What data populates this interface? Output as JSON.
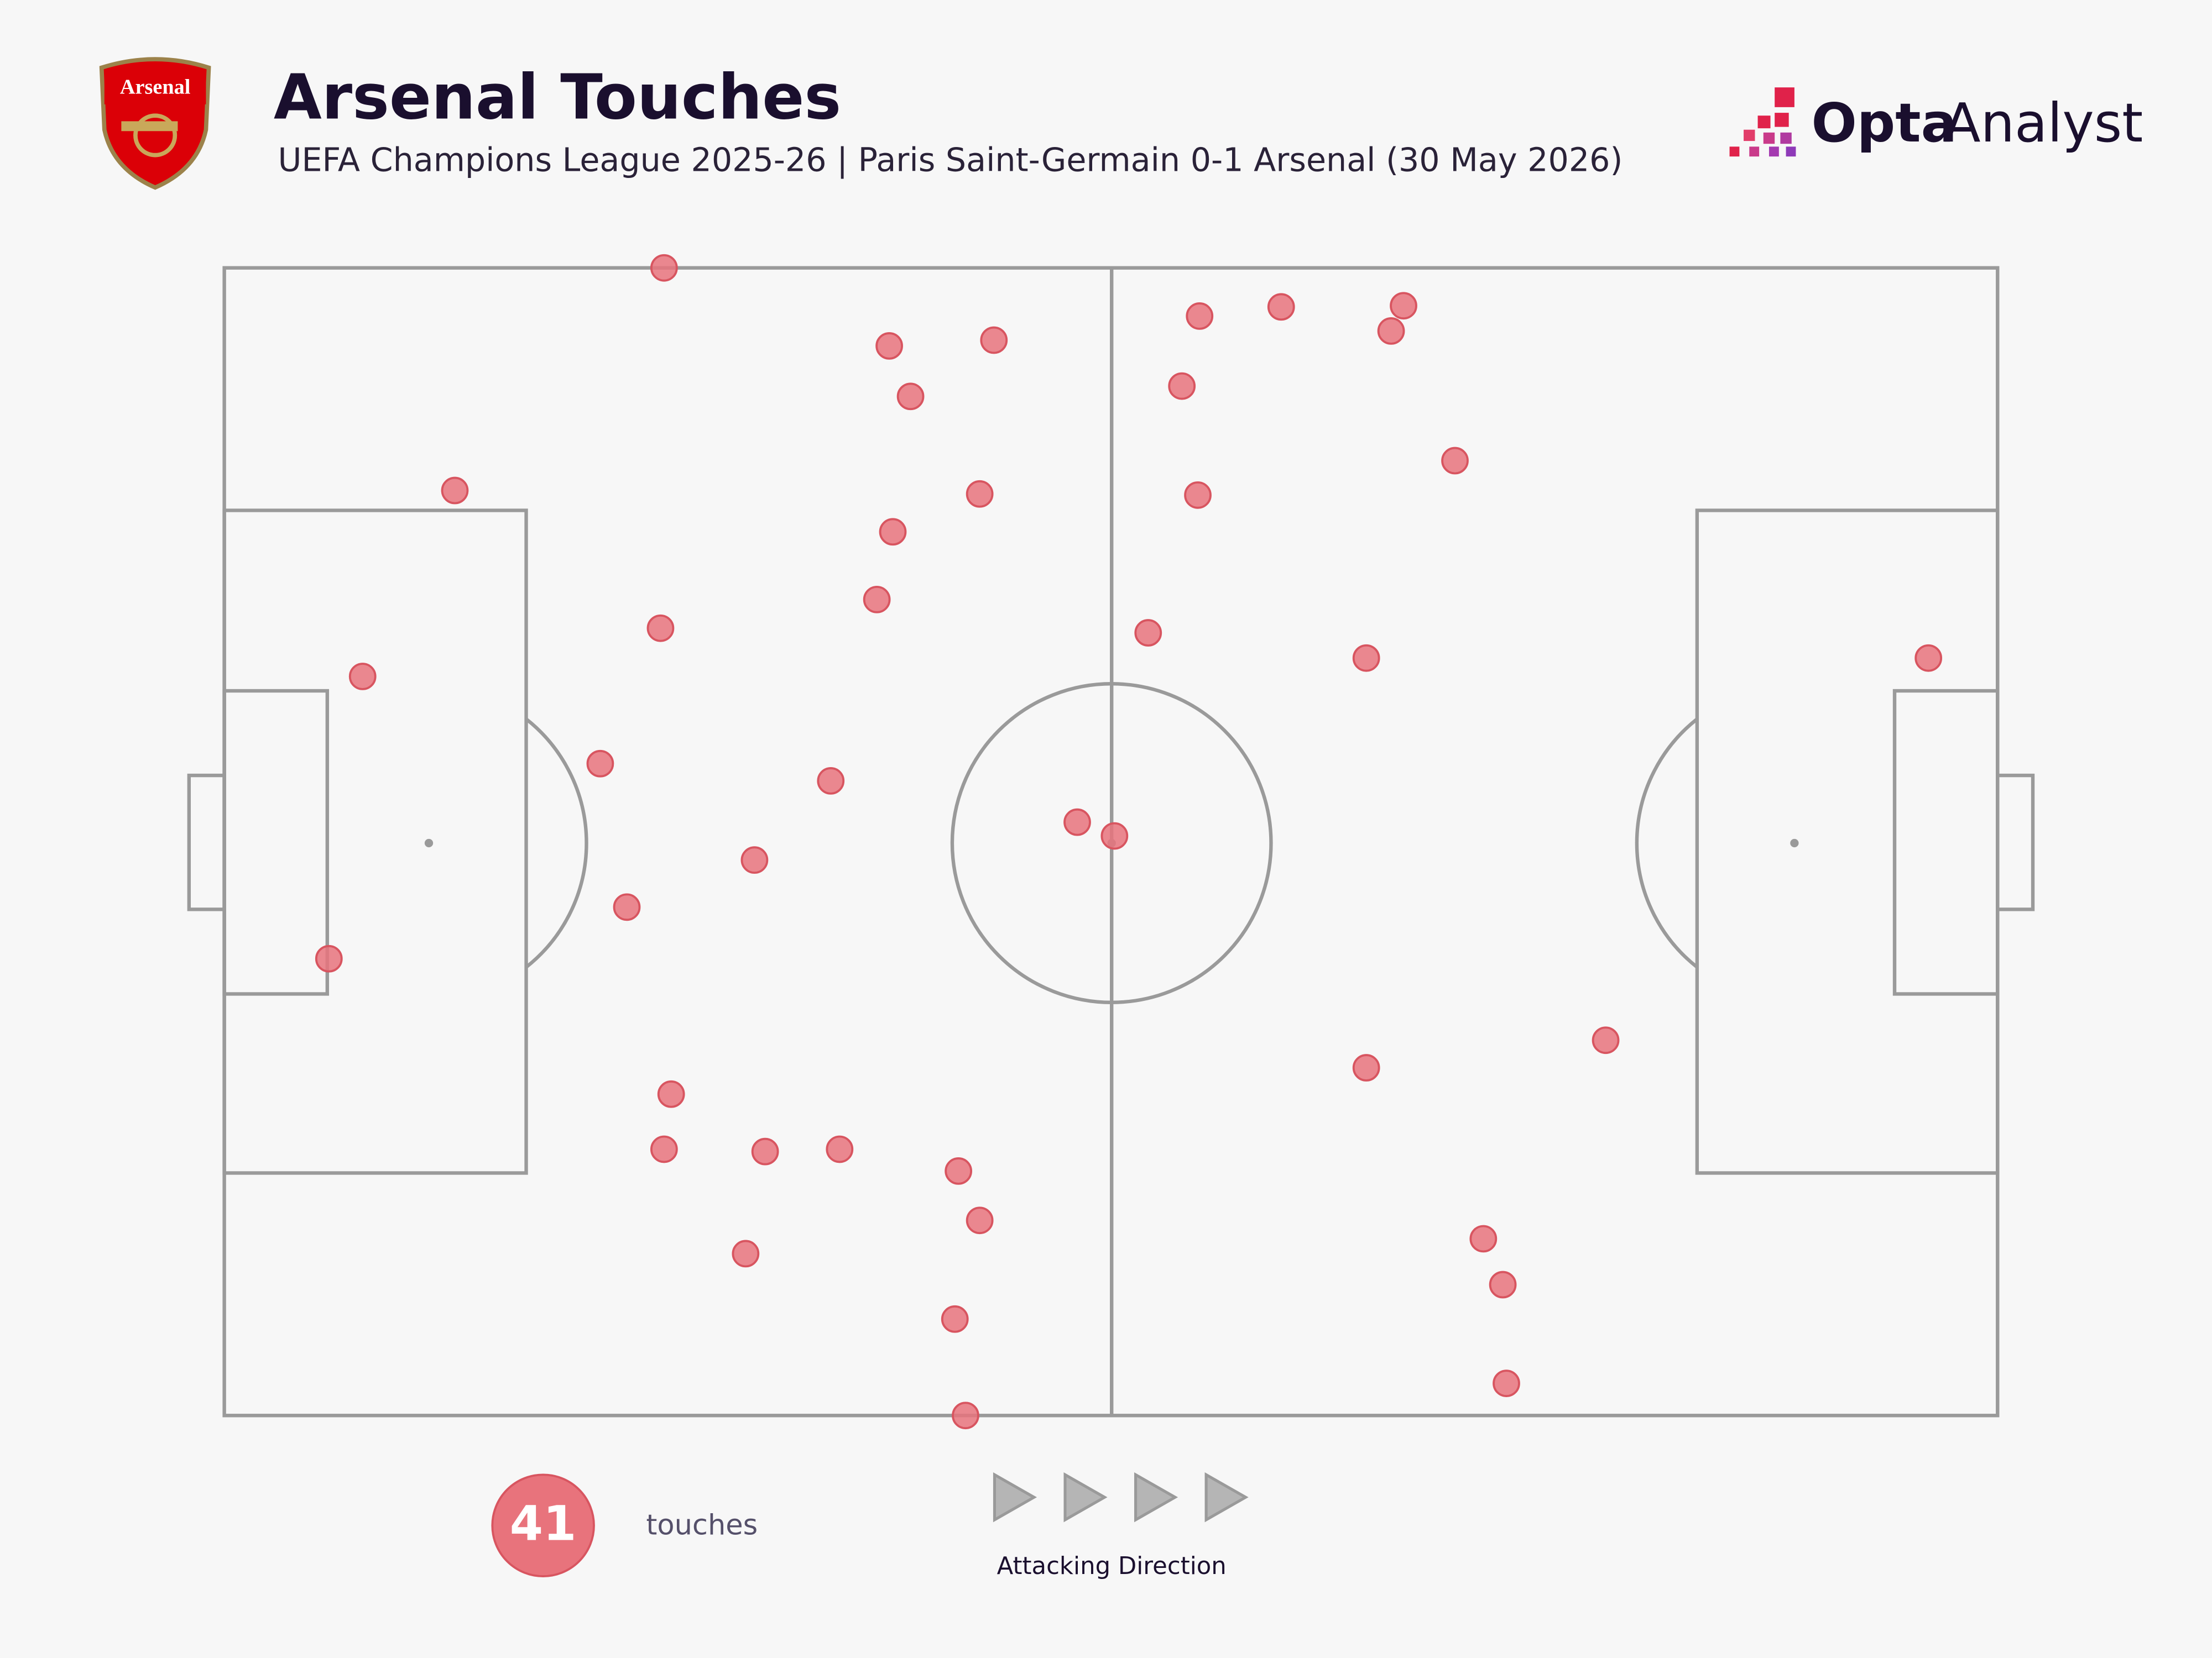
{
  "header": {
    "crest_text": "Arsenal",
    "brand_bold": "Opta",
    "brand_light": "Analyst"
  },
  "chart_data": {
    "type": "scatter",
    "title": "Arsenal Touches",
    "subtitle": "UEFA Champions League 2025-26 | Paris Saint-Germain 0-1 Arsenal (30 May 2026)",
    "xlim": [
      0,
      100
    ],
    "ylim": [
      0,
      100
    ],
    "color": "#e8737c",
    "x": [
      24.8,
      37.5,
      43.4,
      38.7,
      13.0,
      42.6,
      37.7,
      36.8,
      24.6,
      7.8,
      21.2,
      34.2,
      29.9,
      22.7,
      5.9,
      25.2,
      24.8,
      30.5,
      34.7,
      41.4,
      42.6,
      29.4,
      41.2,
      41.8,
      48.1,
      50.2,
      55.0,
      59.6,
      66.5,
      65.8,
      54.0,
      69.4,
      54.9,
      52.1,
      64.4,
      96.1,
      77.9,
      64.4,
      71.0,
      72.1,
      72.3
    ],
    "values": [
      100.0,
      93.2,
      93.7,
      88.8,
      80.6,
      80.3,
      77.0,
      71.1,
      68.6,
      64.4,
      56.8,
      55.3,
      48.4,
      44.3,
      39.8,
      28.0,
      23.2,
      23.0,
      23.2,
      21.3,
      17.0,
      14.1,
      8.4,
      0.0,
      51.7,
      50.5,
      95.8,
      96.6,
      96.7,
      94.5,
      89.7,
      83.2,
      80.2,
      68.2,
      66.0,
      66.0,
      32.7,
      30.3,
      15.4,
      11.4,
      2.8
    ],
    "total": 41,
    "total_label": "touches",
    "direction_label": "Attacking Direction"
  }
}
